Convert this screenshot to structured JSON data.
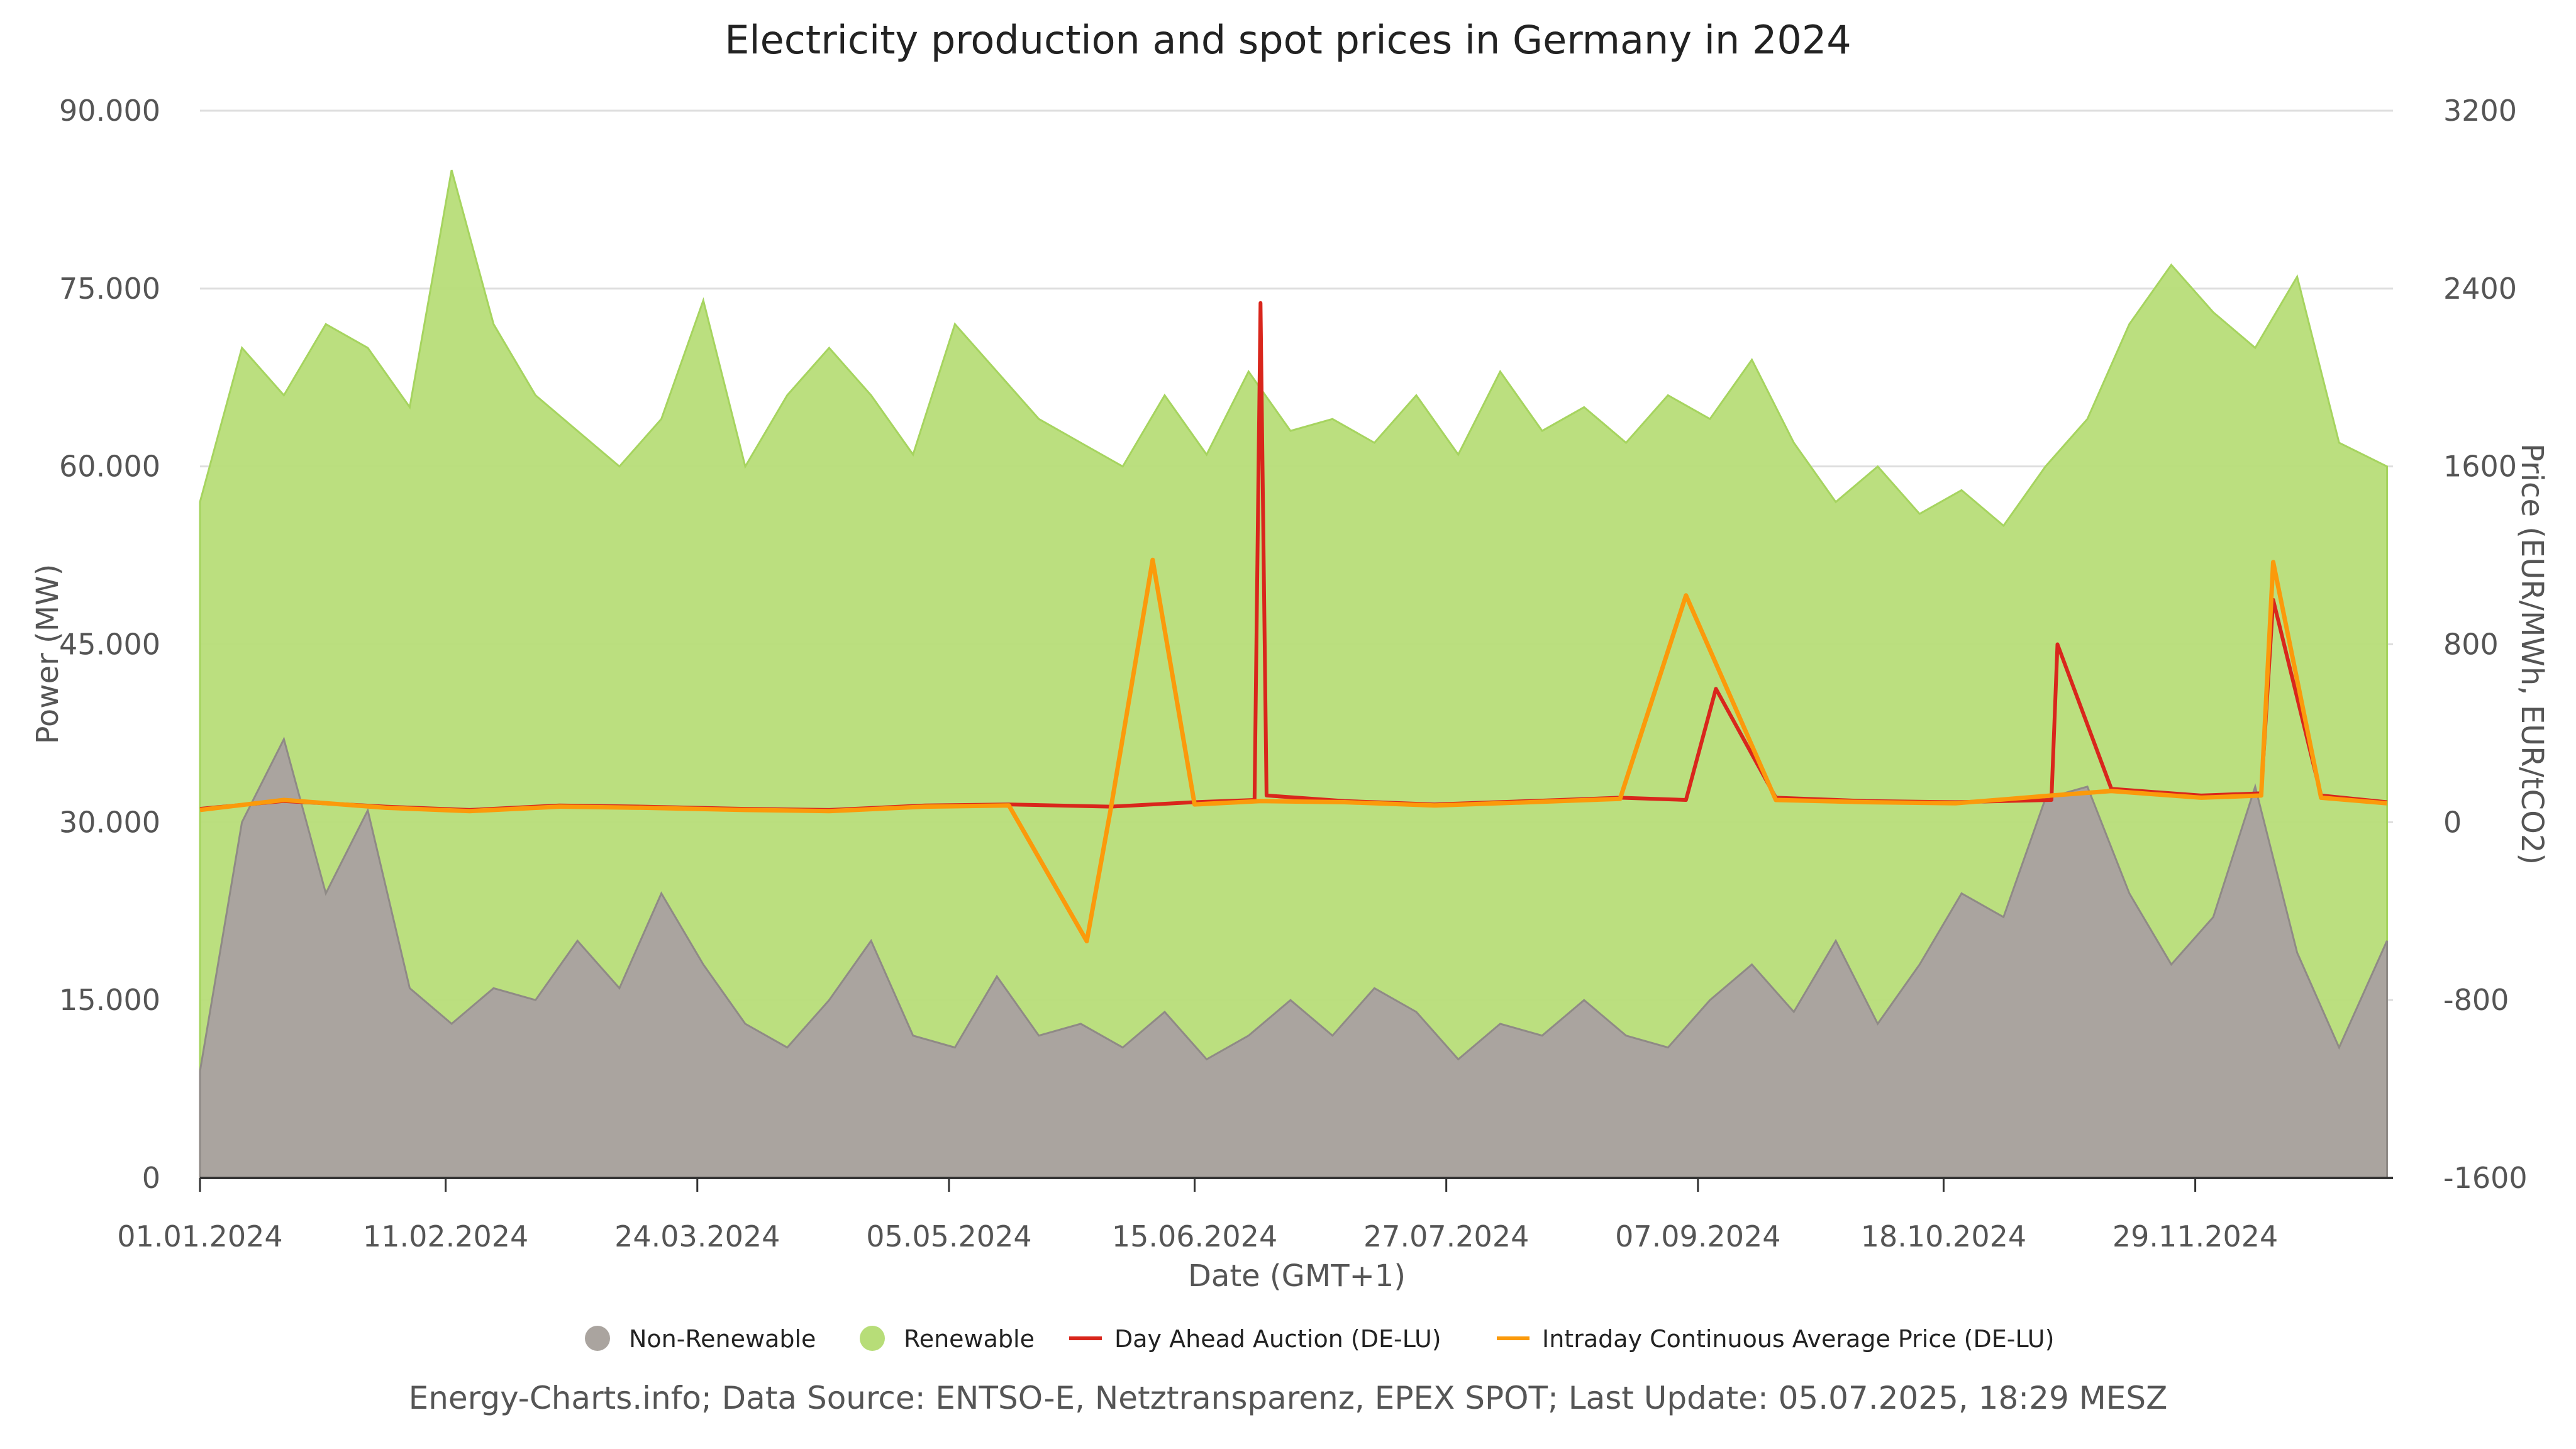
{
  "chart_data": {
    "type": "area",
    "title": "Electricity production and spot prices in Germany in 2024",
    "xlabel": "Date (GMT+1)",
    "ylabel_left": "Power (MW)",
    "ylabel_right": "Price (EUR/MWh, EUR/tCO2)",
    "x_range": [
      "2024-01-01",
      "2024-12-31"
    ],
    "ylim_left": [
      0,
      90000
    ],
    "ylim_right": [
      -1600,
      3200
    ],
    "y_ticks_left": [
      {
        "value": 0,
        "label": "0"
      },
      {
        "value": 15000,
        "label": "15.000"
      },
      {
        "value": 30000,
        "label": "30.000"
      },
      {
        "value": 45000,
        "label": "45.000"
      },
      {
        "value": 60000,
        "label": "60.000"
      },
      {
        "value": 75000,
        "label": "75.000"
      },
      {
        "value": 90000,
        "label": "90.000"
      }
    ],
    "y_ticks_right": [
      {
        "value": -1600,
        "label": "-1600"
      },
      {
        "value": -800,
        "label": "-800"
      },
      {
        "value": 0,
        "label": "0"
      },
      {
        "value": 800,
        "label": "800"
      },
      {
        "value": 1600,
        "label": "1600"
      },
      {
        "value": 2400,
        "label": "2400"
      },
      {
        "value": 3200,
        "label": "3200"
      }
    ],
    "x_ticks": [
      {
        "date": "2024-01-01",
        "label": "01.01.2024"
      },
      {
        "date": "2024-02-11",
        "label": "11.02.2024"
      },
      {
        "date": "2024-03-24",
        "label": "24.03.2024"
      },
      {
        "date": "2024-05-05",
        "label": "05.05.2024"
      },
      {
        "date": "2024-06-15",
        "label": "15.06.2024"
      },
      {
        "date": "2024-07-27",
        "label": "27.07.2024"
      },
      {
        "date": "2024-09-07",
        "label": "07.09.2024"
      },
      {
        "date": "2024-10-18",
        "label": "18.10.2024"
      },
      {
        "date": "2024-11-29",
        "label": "29.11.2024"
      }
    ],
    "grid": true,
    "legend_position": "bottom",
    "series": [
      {
        "name": "Non-Renewable",
        "type": "area",
        "axis": "left",
        "color": "#aaa49f",
        "approximate": true,
        "x": [
          "2024-01-01",
          "2024-01-08",
          "2024-01-15",
          "2024-01-22",
          "2024-01-29",
          "2024-02-05",
          "2024-02-12",
          "2024-02-19",
          "2024-02-26",
          "2024-03-04",
          "2024-03-11",
          "2024-03-18",
          "2024-03-25",
          "2024-04-01",
          "2024-04-08",
          "2024-04-15",
          "2024-04-22",
          "2024-04-29",
          "2024-05-06",
          "2024-05-13",
          "2024-05-20",
          "2024-05-27",
          "2024-06-03",
          "2024-06-10",
          "2024-06-17",
          "2024-06-24",
          "2024-07-01",
          "2024-07-08",
          "2024-07-15",
          "2024-07-22",
          "2024-07-29",
          "2024-08-05",
          "2024-08-12",
          "2024-08-19",
          "2024-08-26",
          "2024-09-02",
          "2024-09-09",
          "2024-09-16",
          "2024-09-23",
          "2024-09-30",
          "2024-10-07",
          "2024-10-14",
          "2024-10-21",
          "2024-10-28",
          "2024-11-04",
          "2024-11-11",
          "2024-11-18",
          "2024-11-25",
          "2024-12-02",
          "2024-12-09",
          "2024-12-16",
          "2024-12-23",
          "2024-12-31"
        ],
        "values": [
          9000,
          30000,
          37000,
          24000,
          31000,
          16000,
          13000,
          16000,
          15000,
          20000,
          16000,
          24000,
          18000,
          13000,
          11000,
          15000,
          20000,
          12000,
          11000,
          17000,
          12000,
          13000,
          11000,
          14000,
          10000,
          12000,
          15000,
          12000,
          16000,
          14000,
          10000,
          13000,
          12000,
          15000,
          12000,
          11000,
          15000,
          18000,
          14000,
          20000,
          13000,
          18000,
          24000,
          22000,
          32000,
          33000,
          24000,
          18000,
          22000,
          33000,
          19000,
          11000,
          20000
        ]
      },
      {
        "name": "Renewable",
        "type": "area",
        "axis": "left",
        "color": "#b7dd78",
        "approximate": true,
        "x": [
          "2024-01-01",
          "2024-01-08",
          "2024-01-15",
          "2024-01-22",
          "2024-01-29",
          "2024-02-05",
          "2024-02-12",
          "2024-02-19",
          "2024-02-26",
          "2024-03-04",
          "2024-03-11",
          "2024-03-18",
          "2024-03-25",
          "2024-04-01",
          "2024-04-08",
          "2024-04-15",
          "2024-04-22",
          "2024-04-29",
          "2024-05-06",
          "2024-05-13",
          "2024-05-20",
          "2024-05-27",
          "2024-06-03",
          "2024-06-10",
          "2024-06-17",
          "2024-06-24",
          "2024-07-01",
          "2024-07-08",
          "2024-07-15",
          "2024-07-22",
          "2024-07-29",
          "2024-08-05",
          "2024-08-12",
          "2024-08-19",
          "2024-08-26",
          "2024-09-02",
          "2024-09-09",
          "2024-09-16",
          "2024-09-23",
          "2024-09-30",
          "2024-10-07",
          "2024-10-14",
          "2024-10-21",
          "2024-10-28",
          "2024-11-04",
          "2024-11-11",
          "2024-11-18",
          "2024-11-25",
          "2024-12-02",
          "2024-12-09",
          "2024-12-16",
          "2024-12-23",
          "2024-12-31"
        ],
        "values": [
          57000,
          70000,
          66000,
          72000,
          70000,
          65000,
          85000,
          72000,
          66000,
          63000,
          60000,
          64000,
          74000,
          60000,
          66000,
          70000,
          66000,
          61000,
          72000,
          68000,
          64000,
          62000,
          60000,
          66000,
          61000,
          68000,
          63000,
          64000,
          62000,
          66000,
          61000,
          68000,
          63000,
          65000,
          62000,
          66000,
          64000,
          69000,
          62000,
          57000,
          60000,
          56000,
          58000,
          55000,
          60000,
          64000,
          72000,
          77000,
          73000,
          70000,
          76000,
          62000,
          60000
        ]
      },
      {
        "name": "Day Ahead Auction (DE-LU)",
        "type": "line",
        "axis": "right",
        "color": "#d9261c",
        "approximate": true,
        "x": [
          "2024-01-01",
          "2024-01-15",
          "2024-02-01",
          "2024-02-15",
          "2024-03-01",
          "2024-03-15",
          "2024-04-01",
          "2024-04-15",
          "2024-05-01",
          "2024-05-15",
          "2024-06-01",
          "2024-06-15",
          "2024-06-25",
          "2024-06-26",
          "2024-06-27",
          "2024-07-10",
          "2024-07-25",
          "2024-08-10",
          "2024-08-25",
          "2024-09-05",
          "2024-09-10",
          "2024-09-20",
          "2024-10-05",
          "2024-10-20",
          "2024-11-05",
          "2024-11-06",
          "2024-11-15",
          "2024-11-30",
          "2024-12-10",
          "2024-12-12",
          "2024-12-20",
          "2024-12-31"
        ],
        "values": [
          60,
          95,
          70,
          55,
          75,
          70,
          60,
          55,
          75,
          80,
          70,
          90,
          100,
          2335,
          120,
          95,
          80,
          95,
          110,
          100,
          600,
          110,
          95,
          90,
          100,
          800,
          150,
          120,
          130,
          1000,
          120,
          90
        ]
      },
      {
        "name": "Intraday Continuous Average Price (DE-LU)",
        "type": "line",
        "axis": "right",
        "color": "#fb9a0b",
        "approximate": true,
        "x": [
          "2024-01-01",
          "2024-01-15",
          "2024-02-01",
          "2024-02-15",
          "2024-03-01",
          "2024-03-15",
          "2024-04-01",
          "2024-04-15",
          "2024-05-01",
          "2024-05-15",
          "2024-05-28",
          "2024-06-01",
          "2024-06-08",
          "2024-06-15",
          "2024-06-26",
          "2024-07-10",
          "2024-07-25",
          "2024-08-10",
          "2024-08-25",
          "2024-09-05",
          "2024-09-20",
          "2024-10-05",
          "2024-10-20",
          "2024-11-05",
          "2024-11-15",
          "2024-11-30",
          "2024-12-10",
          "2024-12-12",
          "2024-12-20",
          "2024-12-31"
        ],
        "values": [
          55,
          100,
          65,
          50,
          70,
          65,
          55,
          50,
          70,
          75,
          -535,
          60,
          1180,
          80,
          95,
          90,
          75,
          90,
          105,
          1020,
          100,
          90,
          85,
          120,
          140,
          110,
          120,
          1170,
          110,
          85
        ]
      }
    ]
  },
  "legend": [
    {
      "label": "Non-Renewable",
      "color": "#aaa49f",
      "marker": "circle"
    },
    {
      "label": "Renewable",
      "color": "#b7dd78",
      "marker": "circle"
    },
    {
      "label": "Day Ahead Auction (DE-LU)",
      "color": "#d9261c",
      "marker": "line"
    },
    {
      "label": "Intraday Continuous Average Price (DE-LU)",
      "color": "#fb9a0b",
      "marker": "line"
    }
  ],
  "credits": "Energy-Charts.info; Data Source: ENTSO-E, Netztransparenz, EPEX SPOT; Last Update: 05.07.2025, 18:29 MESZ"
}
